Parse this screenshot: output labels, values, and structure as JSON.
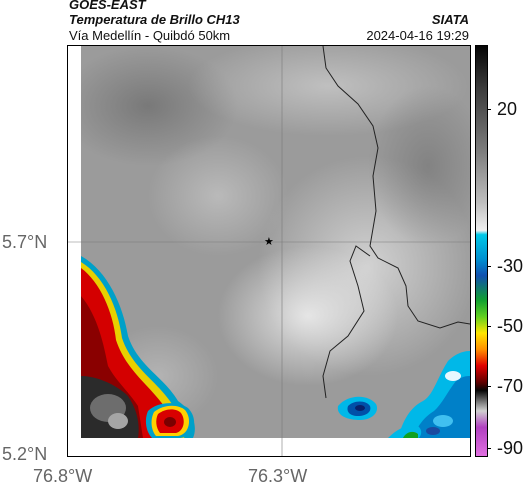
{
  "header": {
    "satellite": "GOES-EAST",
    "product": "Temperatura de Brillo CH13",
    "region": "Vía Medellín - Quibdó 50km",
    "organization": "SIATA",
    "timestamp": "2024-04-16 19:29"
  },
  "axes": {
    "lat_ticks": [
      "5.7°N",
      "5.2°N"
    ],
    "lon_ticks": [
      "76.8°W",
      "76.3°W"
    ]
  },
  "colorbar": {
    "labels": [
      "20",
      "-30",
      "-50",
      "-70",
      "-90"
    ],
    "colors": {
      "warm_top": "#2a2a2a",
      "cold_cyan": "#00b0e0",
      "green": "#1fa01f",
      "yellow": "#ffe600",
      "red": "#d00000",
      "black": "#050505",
      "magenta": "#b040c0"
    }
  },
  "marker": {
    "symbol": "★"
  }
}
